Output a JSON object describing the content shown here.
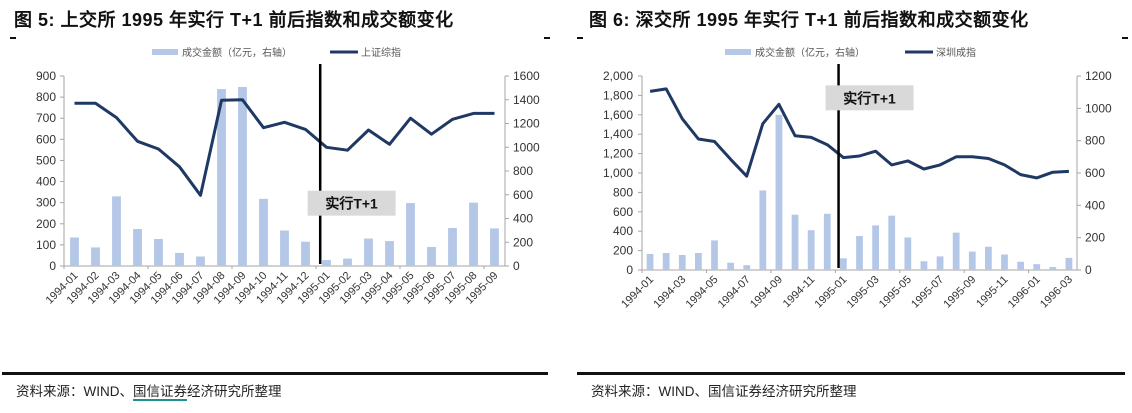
{
  "figures": [
    {
      "title": "图 5:  上交所 1995 年实行 T+1 前后指数和成交额变化",
      "source_prefix": "资料来源：WIND、",
      "source_underlined": "国信证券",
      "source_suffix": "经济研究所整理"
    },
    {
      "title": "图 6:  深交所 1995 年实行 T+1 前后指数和成交额变化",
      "source_prefix": "资料来源：WIND、",
      "source_underlined": "国信证券",
      "source_suffix": "经济研究所整理"
    }
  ],
  "colors": {
    "bar": "#b4c7e7",
    "line": "#1f3864",
    "marker_line": "#000000",
    "annotation_bg": "#d9d9d9",
    "axis": "#a6a6a6",
    "text": "#333333"
  },
  "chart_data": [
    {
      "type": "bar+line",
      "title": "图 5: 上交所 1995 年实行 T+1 前后指数和成交额变化",
      "categories": [
        "1994-01",
        "1994-02",
        "1994-03",
        "1994-04",
        "1994-05",
        "1994-06",
        "1994-07",
        "1994-08",
        "1994-09",
        "1994-10",
        "1994-11",
        "1994-12",
        "1995-01",
        "1995-02",
        "1995-03",
        "1995-04",
        "1995-05",
        "1995-06",
        "1995-07",
        "1995-08",
        "1995-09"
      ],
      "series": [
        {
          "name": "成交金额（亿元，右轴）",
          "type": "bar",
          "axis": "left",
          "values": [
            135,
            88,
            330,
            175,
            128,
            62,
            45,
            838,
            848,
            318,
            168,
            115,
            28,
            35,
            130,
            118,
            298,
            90,
            180,
            300,
            178
          ]
        },
        {
          "name": "上证综指",
          "type": "line",
          "axis": "right",
          "values": [
            1370,
            1370,
            1250,
            1050,
            985,
            835,
            595,
            1395,
            1400,
            1165,
            1210,
            1150,
            1000,
            975,
            1145,
            1025,
            1245,
            1110,
            1235,
            1285,
            1285
          ]
        }
      ],
      "left_axis": {
        "min": 0,
        "max": 900,
        "ticks": [
          0,
          100,
          200,
          300,
          400,
          500,
          600,
          700,
          800,
          900
        ],
        "labels": [
          "0",
          "100",
          "200",
          "300",
          "400",
          "500",
          "600",
          "700",
          "800",
          "900"
        ]
      },
      "right_axis": {
        "min": 0,
        "max": 1600,
        "ticks": [
          0,
          200,
          400,
          600,
          800,
          1000,
          1200,
          1400,
          1600
        ],
        "labels": [
          "0",
          "200",
          "400",
          "600",
          "800",
          "1000",
          "1200",
          "1400",
          "1600"
        ]
      },
      "x_label_step": 1,
      "vline_after_index": 11.7,
      "annotation": {
        "text": "实行T+1",
        "x_index": 13.6,
        "y_left": 300
      },
      "legend": {
        "position": "top",
        "entries": [
          "成交金额（亿元，右轴）",
          "上证综指"
        ]
      },
      "grid": false
    },
    {
      "type": "bar+line",
      "title": "图 6: 深交所 1995 年实行 T+1 前后指数和成交额变化",
      "categories": [
        "1994-01",
        "1994-02",
        "1994-03",
        "1994-04",
        "1994-05",
        "1994-06",
        "1994-07",
        "1994-08",
        "1994-09",
        "1994-10",
        "1994-11",
        "1994-12",
        "1995-01",
        "1995-02",
        "1995-03",
        "1995-04",
        "1995-05",
        "1995-06",
        "1995-07",
        "1995-08",
        "1995-09",
        "1995-10",
        "1995-11",
        "1995-12",
        "1996-01",
        "1996-02",
        "1996-03"
      ],
      "series": [
        {
          "name": "成交金额（亿元，右轴）",
          "type": "bar",
          "axis": "left",
          "values": [
            165,
            175,
            155,
            175,
            305,
            75,
            50,
            820,
            1600,
            570,
            410,
            580,
            120,
            350,
            460,
            560,
            335,
            90,
            140,
            385,
            190,
            240,
            160,
            85,
            60,
            30,
            125
          ]
        },
        {
          "name": "深圳成指",
          "type": "line",
          "axis": "right",
          "values": [
            1105,
            1120,
            935,
            810,
            795,
            685,
            580,
            905,
            1025,
            830,
            820,
            775,
            695,
            705,
            735,
            650,
            675,
            625,
            650,
            700,
            700,
            690,
            650,
            590,
            570,
            605,
            610
          ]
        }
      ],
      "left_axis": {
        "min": 0,
        "max": 2000,
        "ticks": [
          0,
          200,
          400,
          600,
          800,
          1000,
          1200,
          1400,
          1600,
          1800,
          2000
        ],
        "labels": [
          "0",
          "200",
          "400",
          "600",
          "800",
          "1,000",
          "1,200",
          "1,400",
          "1,600",
          "1,800",
          "2,000"
        ]
      },
      "right_axis": {
        "min": 0,
        "max": 1200,
        "ticks": [
          0,
          200,
          400,
          600,
          800,
          1000,
          1200
        ],
        "labels": [
          "0",
          "200",
          "400",
          "600",
          "800",
          "1000",
          "1200"
        ]
      },
      "x_label_step": 2,
      "vline_after_index": 11.7,
      "annotation": {
        "text": "实行T+1",
        "x_index": 14.0,
        "y_left": 1780
      },
      "legend": {
        "position": "top",
        "entries": [
          "成交金额（亿元，右轴）",
          "深圳成指"
        ]
      },
      "grid": false
    }
  ]
}
